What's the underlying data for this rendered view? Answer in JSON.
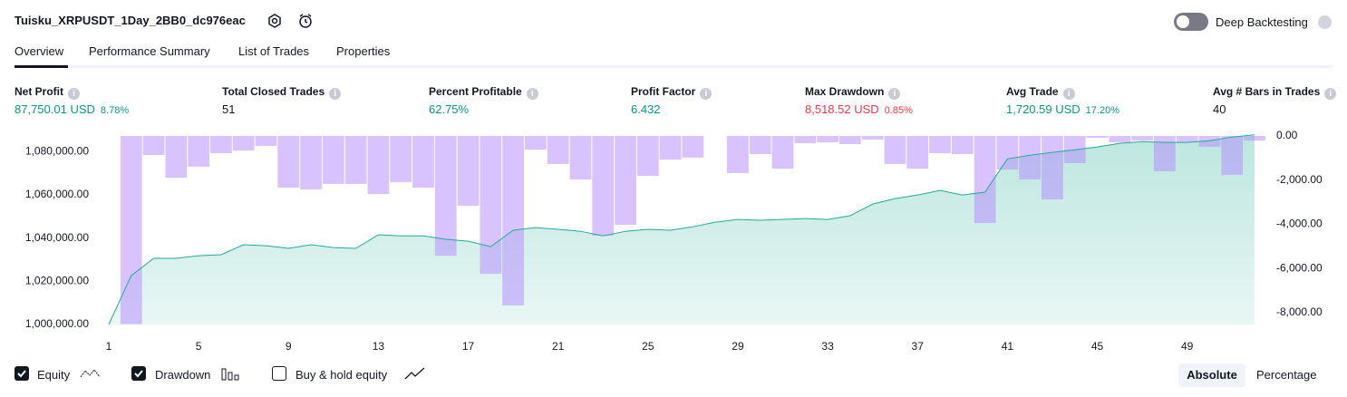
{
  "header": {
    "title": "Tuisku_XRPUSDT_1Day_2BB0_dc976eac",
    "deep_backtesting": "Deep Backtesting"
  },
  "tabs": [
    "Overview",
    "Performance Summary",
    "List of Trades",
    "Properties"
  ],
  "metrics": [
    {
      "label": "Net Profit",
      "value": "87,750.01 USD",
      "percent": "8.78%",
      "tone": "green"
    },
    {
      "label": "Total Closed Trades",
      "value": "51"
    },
    {
      "label": "Percent Profitable",
      "value": "62.75%",
      "tone": "green"
    },
    {
      "label": "Profit Factor",
      "value": "6.432",
      "tone": "green"
    },
    {
      "label": "Max Drawdown",
      "value": "8,518.52 USD",
      "percent": "0.85%",
      "tone": "red"
    },
    {
      "label": "Avg Trade",
      "value": "1,720.59 USD",
      "percent": "17.20%",
      "tone": "green"
    },
    {
      "label": "Avg # Bars in Trades",
      "value": "40"
    }
  ],
  "chart_data": {
    "type": "line",
    "x": [
      1,
      2,
      3,
      4,
      5,
      6,
      7,
      8,
      9,
      10,
      11,
      12,
      13,
      14,
      15,
      16,
      17,
      18,
      19,
      20,
      21,
      22,
      23,
      24,
      25,
      26,
      27,
      28,
      29,
      30,
      31,
      32,
      33,
      34,
      35,
      36,
      37,
      38,
      39,
      40,
      41,
      42,
      43,
      44,
      45,
      46,
      47,
      48,
      49,
      50,
      51,
      52
    ],
    "xlim": [
      1,
      52
    ],
    "xticks": [
      1,
      5,
      9,
      13,
      17,
      21,
      25,
      29,
      33,
      37,
      41,
      45,
      49
    ],
    "ylim": [
      1000000,
      1087200
    ],
    "yticks": [
      {
        "value": 1000000,
        "label": "1,000,000.00"
      },
      {
        "value": 1020000,
        "label": "1,020,000.00"
      },
      {
        "value": 1040000,
        "label": "1,040,000.00"
      },
      {
        "value": 1060000,
        "label": "1,060,000.00"
      },
      {
        "value": 1080000,
        "label": "1,080,000.00"
      }
    ],
    "y2lim": [
      -8533,
      0
    ],
    "y2ticks": [
      {
        "value": 0,
        "label": "0.00"
      },
      {
        "value": -2000,
        "label": "-2,000.00"
      },
      {
        "value": -4000,
        "label": "-4,000.00"
      },
      {
        "value": -6000,
        "label": "-6,000.00"
      },
      {
        "value": -8000,
        "label": "-8,000.00"
      }
    ],
    "series": [
      {
        "name": "Equity",
        "color": "#22ab94",
        "values": [
          1000000,
          1022600,
          1030600,
          1030600,
          1031800,
          1032300,
          1036900,
          1036400,
          1035200,
          1036900,
          1035600,
          1035200,
          1041500,
          1041000,
          1041000,
          1039400,
          1038500,
          1036000,
          1043600,
          1044800,
          1044000,
          1043100,
          1041000,
          1043100,
          1044000,
          1043600,
          1045200,
          1047300,
          1048600,
          1048200,
          1048600,
          1049000,
          1048600,
          1050300,
          1055700,
          1058200,
          1059900,
          1062000,
          1059900,
          1061200,
          1076600,
          1078300,
          1079600,
          1080800,
          1082100,
          1083800,
          1084600,
          1084200,
          1084200,
          1085000,
          1086700,
          1087750
        ]
      },
      {
        "name": "Drawdown",
        "color": "#b388ff",
        "type": "bar",
        "axis": "y2",
        "values": [
          0,
          -8518.52,
          -860,
          -1890,
          -1390,
          -780,
          -660,
          -450,
          -2340,
          -2420,
          -2170,
          -2170,
          -2630,
          -2090,
          -2340,
          -5420,
          -3160,
          -6240,
          -7670,
          -620,
          -1270,
          -1970,
          -4510,
          -4020,
          -1810,
          -1070,
          -980,
          0,
          -1680,
          -820,
          -1480,
          -330,
          -290,
          -370,
          -160,
          -1270,
          -1480,
          -780,
          -820,
          -3940,
          -1520,
          -1970,
          -2870,
          -1230,
          -80,
          -290,
          -210,
          -1600,
          -290,
          -490,
          -1760,
          -210
        ]
      }
    ]
  },
  "controls": {
    "buy_hold": "Buy & hold equity",
    "modes": [
      "Absolute",
      "Percentage"
    ]
  }
}
